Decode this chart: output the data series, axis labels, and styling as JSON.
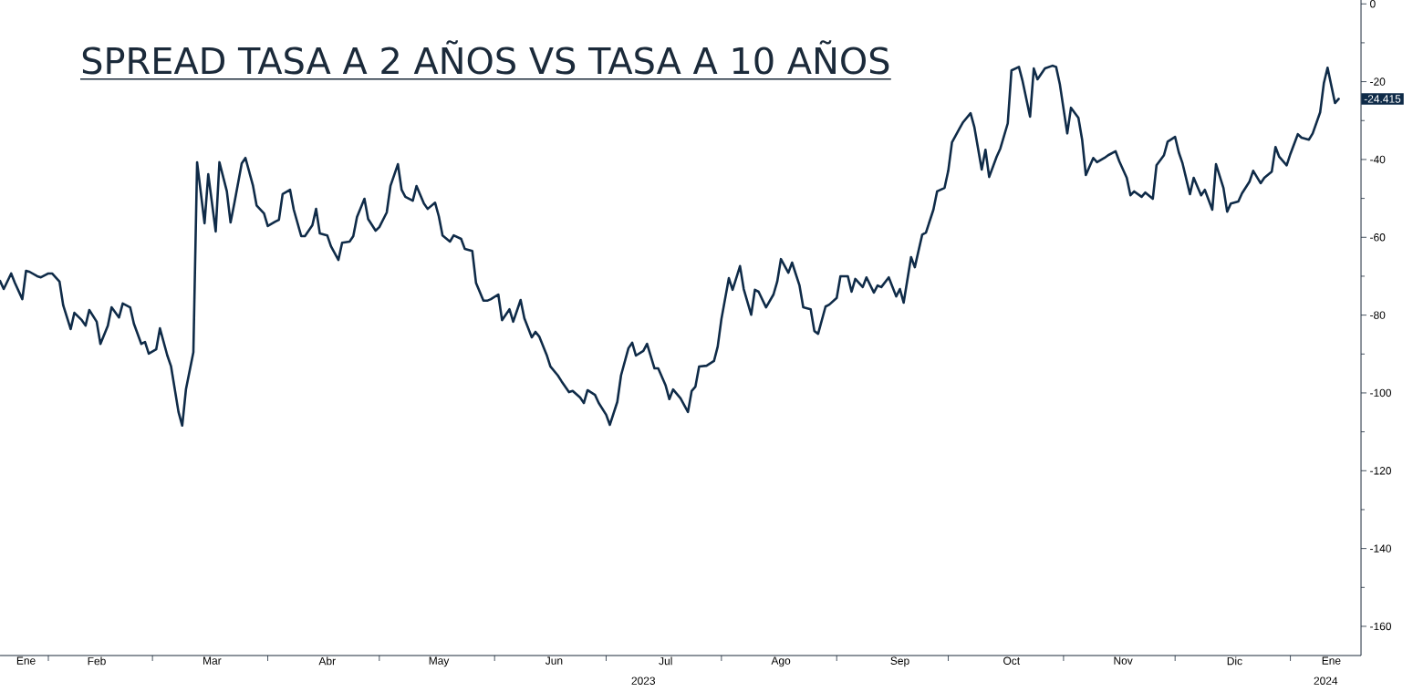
{
  "chart_data": {
    "type": "line",
    "title": "SPREAD TASA A 2 AÑOS VS TASA A 10 AÑOS",
    "color": "#0f2b48",
    "x": [
      "2023-01-19",
      "2023-01-20",
      "2023-01-22",
      "2023-01-23",
      "2023-01-25",
      "2023-01-26",
      "2023-01-27",
      "2023-01-29",
      "2023-01-30",
      "2023-02-01",
      "2023-02-02",
      "2023-02-04",
      "2023-02-05",
      "2023-02-07",
      "2023-02-08",
      "2023-02-10",
      "2023-02-11",
      "2023-02-12",
      "2023-02-14",
      "2023-02-15",
      "2023-02-17",
      "2023-02-18",
      "2023-02-20",
      "2023-02-21",
      "2023-02-23",
      "2023-02-24",
      "2023-02-26",
      "2023-02-27",
      "2023-02-28",
      "2023-03-02",
      "2023-03-03",
      "2023-03-05",
      "2023-03-06",
      "2023-03-08",
      "2023-03-09",
      "2023-03-10",
      "2023-03-12",
      "2023-03-13",
      "2023-03-15",
      "2023-03-16",
      "2023-03-18",
      "2023-03-19",
      "2023-03-21",
      "2023-03-22",
      "2023-03-23",
      "2023-03-25",
      "2023-03-26",
      "2023-03-28",
      "2023-03-29",
      "2023-03-31",
      "2023-04-01",
      "2023-04-03",
      "2023-04-04",
      "2023-04-05",
      "2023-04-07",
      "2023-04-08",
      "2023-04-10",
      "2023-04-11",
      "2023-04-13",
      "2023-04-14",
      "2023-04-15",
      "2023-04-17",
      "2023-04-18",
      "2023-04-20",
      "2023-04-21",
      "2023-04-23",
      "2023-04-24",
      "2023-04-25",
      "2023-04-27",
      "2023-04-28",
      "2023-04-30",
      "2023-05-01",
      "2023-05-03",
      "2023-05-04",
      "2023-05-06",
      "2023-05-07",
      "2023-05-08",
      "2023-05-10",
      "2023-05-11",
      "2023-05-13",
      "2023-05-14",
      "2023-05-16",
      "2023-05-17",
      "2023-05-18",
      "2023-05-20",
      "2023-05-21",
      "2023-05-23",
      "2023-05-24",
      "2023-05-26",
      "2023-05-27",
      "2023-05-29",
      "2023-05-30",
      "2023-05-31",
      "2023-06-02",
      "2023-06-03",
      "2023-06-05",
      "2023-06-06",
      "2023-06-08",
      "2023-06-09",
      "2023-06-11",
      "2023-06-12",
      "2023-06-13",
      "2023-06-15",
      "2023-06-16",
      "2023-06-18",
      "2023-06-19",
      "2023-06-21",
      "2023-06-22",
      "2023-06-24",
      "2023-06-25",
      "2023-06-26",
      "2023-06-28",
      "2023-06-29",
      "2023-07-01",
      "2023-07-02",
      "2023-07-04",
      "2023-07-05",
      "2023-07-07",
      "2023-07-08",
      "2023-07-09",
      "2023-07-11",
      "2023-07-12",
      "2023-07-14",
      "2023-07-15",
      "2023-07-17",
      "2023-07-18",
      "2023-07-19",
      "2023-07-21",
      "2023-07-23",
      "2023-07-24",
      "2023-07-25",
      "2023-07-26",
      "2023-07-28",
      "2023-07-30",
      "2023-07-31",
      "2023-08-01",
      "2023-08-03",
      "2023-08-04",
      "2023-08-06",
      "2023-08-07",
      "2023-08-09",
      "2023-08-10",
      "2023-08-11",
      "2023-08-13",
      "2023-08-15",
      "2023-08-16",
      "2023-08-17",
      "2023-08-19",
      "2023-08-20",
      "2023-08-22",
      "2023-08-23",
      "2023-08-25",
      "2023-08-26",
      "2023-08-27",
      "2023-08-29",
      "2023-08-30",
      "2023-09-01",
      "2023-09-02",
      "2023-09-04",
      "2023-09-05",
      "2023-09-06",
      "2023-09-08",
      "2023-09-09",
      "2023-09-11",
      "2023-09-12",
      "2023-09-13",
      "2023-09-15",
      "2023-09-17",
      "2023-09-18",
      "2023-09-19",
      "2023-09-21",
      "2023-09-22",
      "2023-09-24",
      "2023-09-25",
      "2023-09-27",
      "2023-09-28",
      "2023-09-30",
      "2023-10-01",
      "2023-10-02",
      "2023-10-04",
      "2023-10-05",
      "2023-10-07",
      "2023-10-08",
      "2023-10-10",
      "2023-10-11",
      "2023-10-12",
      "2023-10-14",
      "2023-10-15",
      "2023-10-17",
      "2023-10-18",
      "2023-10-20",
      "2023-10-21",
      "2023-10-23",
      "2023-10-24",
      "2023-10-25",
      "2023-10-27",
      "2023-10-29",
      "2023-10-30",
      "2023-10-31",
      "2023-11-02",
      "2023-11-03",
      "2023-11-05",
      "2023-11-06",
      "2023-11-07",
      "2023-11-09",
      "2023-11-10",
      "2023-11-12",
      "2023-11-13",
      "2023-11-15",
      "2023-11-16",
      "2023-11-18",
      "2023-11-19",
      "2023-11-20",
      "2023-11-22",
      "2023-11-23",
      "2023-11-25",
      "2023-11-26",
      "2023-11-28",
      "2023-11-29",
      "2023-12-01",
      "2023-12-02",
      "2023-12-03",
      "2023-12-05",
      "2023-12-06",
      "2023-12-08",
      "2023-12-09",
      "2023-12-11",
      "2023-12-12",
      "2023-12-14",
      "2023-12-15",
      "2023-12-16",
      "2023-12-18",
      "2023-12-19",
      "2023-12-21",
      "2023-12-22",
      "2023-12-24",
      "2023-12-25",
      "2023-12-27",
      "2023-12-28",
      "2023-12-29",
      "2023-12-31",
      "2024-01-01",
      "2024-01-03",
      "2024-01-04",
      "2024-01-06",
      "2024-01-07",
      "2024-01-09",
      "2024-01-10",
      "2024-01-11",
      "2024-01-13",
      "2024-01-14"
    ],
    "values": [
      -71.2,
      -73.3,
      -69.3,
      -71.7,
      -75.9,
      -68.6,
      -68.9,
      -70,
      -70.3,
      -69.3,
      -69.3,
      -71.4,
      -77.5,
      -83.6,
      -79.4,
      -81.3,
      -82.7,
      -78.7,
      -81.7,
      -87.4,
      -82.7,
      -78,
      -80.6,
      -77,
      -78,
      -82.2,
      -87.4,
      -86.9,
      -89.9,
      -88.8,
      -83.4,
      -90.4,
      -93.2,
      -104.9,
      -108.4,
      -99.1,
      -89.5,
      -40.7,
      -56.4,
      -43.8,
      -58.5,
      -40.7,
      -48.2,
      -56.2,
      -51.3,
      -41,
      -39.6,
      -46.6,
      -51.8,
      -53.9,
      -57.1,
      -56,
      -55.5,
      -48.9,
      -47.8,
      -52.9,
      -59.7,
      -59.7,
      -56.9,
      -52.7,
      -59,
      -59.5,
      -62.3,
      -65.8,
      -61.4,
      -61.1,
      -59.7,
      -54.8,
      -50.1,
      -55.3,
      -58.3,
      -57.4,
      -53.6,
      -46.8,
      -41.2,
      -47.8,
      -49.6,
      -50.6,
      -46.8,
      -51.3,
      -52.7,
      -51.1,
      -54.6,
      -59.5,
      -61.1,
      -59.5,
      -60.4,
      -63,
      -63.5,
      -71.7,
      -76.3,
      -76.3,
      -75.9,
      -74.7,
      -81.3,
      -78.5,
      -81.7,
      -76.1,
      -80.8,
      -85.7,
      -84.3,
      -85.5,
      -90.2,
      -93.2,
      -95.5,
      -97,
      -99.8,
      -99.5,
      -101.2,
      -102.6,
      -99.3,
      -100.5,
      -102.6,
      -105.6,
      -108.2,
      -102.3,
      -95.5,
      -88.5,
      -87.1,
      -90.4,
      -89.2,
      -87.4,
      -93.7,
      -93.7,
      -98.1,
      -101.6,
      -99.1,
      -101.4,
      -104.9,
      -99.5,
      -98.4,
      -93.2,
      -93,
      -91.8,
      -88.1,
      -81,
      -70.5,
      -73.5,
      -67.4,
      -73.3,
      -79.9,
      -73.5,
      -74,
      -78,
      -74.7,
      -71.4,
      -65.6,
      -69.1,
      -66.5,
      -72.4,
      -78,
      -78.5,
      -84.1,
      -84.8,
      -77.8,
      -77.3,
      -75.6,
      -70,
      -70,
      -74,
      -70.7,
      -72.8,
      -70.3,
      -74.2,
      -72.4,
      -72.8,
      -70.3,
      -75.2,
      -73.3,
      -76.8,
      -65.1,
      -67.7,
      -59.3,
      -58.8,
      -52.9,
      -48.2,
      -47.3,
      -42.9,
      -35.6,
      -32.1,
      -30.4,
      -28.1,
      -31.6,
      -42.6,
      -37.5,
      -44.5,
      -39.3,
      -37.2,
      -30.7,
      -17.1,
      -16.2,
      -19.9,
      -29,
      -16.6,
      -19.4,
      -16.6,
      -15.9,
      -16.2,
      -20.6,
      -33.3,
      -26.7,
      -29.3,
      -34.9,
      -44,
      -39.6,
      -40.7,
      -39.6,
      -38.9,
      -37.9,
      -40.5,
      -44.7,
      -49.2,
      -48.2,
      -49.6,
      -48.5,
      -50.1,
      -41.5,
      -38.9,
      -35.4,
      -34.2,
      -38.2,
      -41,
      -48.9,
      -44.7,
      -49.2,
      -47.8,
      -52.9,
      -41.2,
      -47.3,
      -53.4,
      -51.3,
      -50.8,
      -48.7,
      -45.7,
      -42.9,
      -46.1,
      -44.7,
      -43.1,
      -36.8,
      -39.3,
      -41.5,
      -38.6,
      -33.5,
      -34.4,
      -34.9,
      -33.3,
      -27.9,
      -20.4,
      -16.4,
      -25.5,
      -24.415
    ],
    "xlim": [
      "2023-01-19",
      "2024-01-20"
    ],
    "ylim": [
      -167.5,
      1
    ],
    "xticks": [
      {
        "value": "2023-02-01",
        "label": null
      },
      {
        "value": "2023-03-01",
        "label": null
      },
      {
        "value": "2023-04-01",
        "label": null
      },
      {
        "value": "2023-05-01",
        "label": null
      },
      {
        "value": "2023-06-01",
        "label": null
      },
      {
        "value": "2023-07-01",
        "label": null
      },
      {
        "value": "2023-08-01",
        "label": null
      },
      {
        "value": "2023-09-01",
        "label": null
      },
      {
        "value": "2023-10-01",
        "label": null
      },
      {
        "value": "2023-11-01",
        "label": null
      },
      {
        "value": "2023-12-01",
        "label": null
      },
      {
        "value": "2024-01-01",
        "label": null
      },
      {
        "value": "2023-01-26",
        "label": "Ene"
      },
      {
        "value": "2023-02-14",
        "label": "Feb"
      },
      {
        "value": "2023-03-17",
        "label": "Mar"
      },
      {
        "value": "2023-04-17",
        "label": "Abr"
      },
      {
        "value": "2023-05-17",
        "label": "May"
      },
      {
        "value": "2023-06-17",
        "label": "Jun"
      },
      {
        "value": "2023-07-17",
        "label": "Jul"
      },
      {
        "value": "2023-08-17",
        "label": "Ago"
      },
      {
        "value": "2023-09-18",
        "label": "Sep"
      },
      {
        "value": "2023-10-18",
        "label": "Oct"
      },
      {
        "value": "2023-11-17",
        "label": "Nov"
      },
      {
        "value": "2023-12-17",
        "label": "Dic"
      },
      {
        "value": "2024-01-12",
        "label": "Ene"
      }
    ],
    "yticks": [
      0,
      {
        "value": -10,
        "label": null
      },
      -20,
      {
        "value": -30,
        "label": null
      },
      -40,
      {
        "value": -50,
        "label": null
      },
      -60,
      {
        "value": -70,
        "label": null
      },
      -80,
      {
        "value": -90,
        "label": null
      },
      -100,
      {
        "value": -110,
        "label": null
      },
      -120,
      {
        "value": -130,
        "label": null
      },
      -140,
      {
        "value": -150,
        "label": null
      },
      -160
    ],
    "annotations": [
      "2023",
      "2024",
      {
        "text": "-24.415",
        "x": "2024-01-14",
        "y": -24.415
      }
    ]
  }
}
